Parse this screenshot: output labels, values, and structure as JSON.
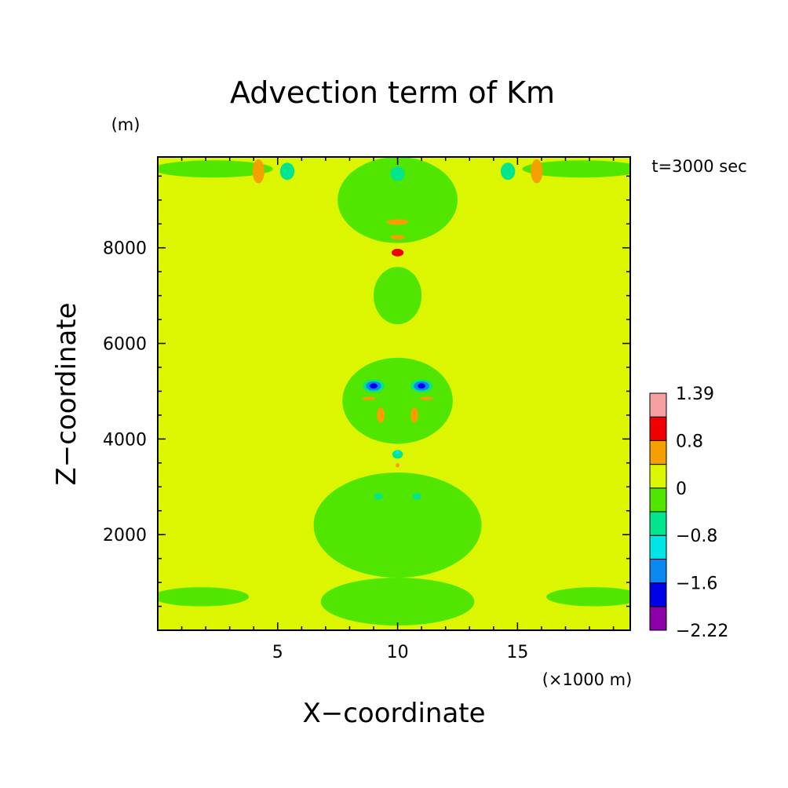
{
  "chart_data": {
    "type": "heatmap",
    "title": "Advection term of Km",
    "xlabel": "X−coordinate",
    "ylabel": "Z−coordinate",
    "x_unit": "(×1000 m)",
    "y_unit": "(m)",
    "time_label": "t=3000 sec",
    "xlim": [
      0,
      19.7
    ],
    "ylim": [
      0,
      9900
    ],
    "x_ticks": [
      5,
      10,
      15
    ],
    "x_tick_labels": [
      "5",
      "10",
      "15"
    ],
    "y_ticks": [
      2000,
      4000,
      6000,
      8000
    ],
    "y_tick_labels": [
      "2000",
      "4000",
      "6000",
      "8000"
    ],
    "colorbar": {
      "levels": [
        -2.22,
        -1.6,
        -0.8,
        0,
        0.8,
        1.39
      ],
      "level_labels": [
        "−2.22",
        "−1.6",
        "−0.8",
        "0",
        "0.8",
        "1.39"
      ],
      "colors": [
        "#8c00aa",
        "#0000e6",
        "#0a87f0",
        "#00e6e6",
        "#00e68c",
        "#50e600",
        "#dcf500",
        "#f5a000",
        "#f00000",
        "#f5a0a0"
      ]
    },
    "background_value": 0.2,
    "background_color": "#dcf500",
    "features": [
      {
        "x": 10.0,
        "z": 9000,
        "value": -0.3,
        "rx": 2.5,
        "rz": 900,
        "color": "#50e600"
      },
      {
        "x": 10.0,
        "z": 7000,
        "value": -0.3,
        "rx": 1.0,
        "rz": 600,
        "color": "#50e600"
      },
      {
        "x": 10.0,
        "z": 4800,
        "value": -0.3,
        "rx": 2.3,
        "rz": 900,
        "color": "#50e600"
      },
      {
        "x": 10.0,
        "z": 2200,
        "value": -0.3,
        "rx": 3.5,
        "rz": 1100,
        "color": "#50e600"
      },
      {
        "x": 10.0,
        "z": 600,
        "value": -0.3,
        "rx": 3.2,
        "rz": 500,
        "color": "#50e600"
      },
      {
        "x": 2.3,
        "z": 9650,
        "value": -0.3,
        "rx": 2.5,
        "rz": 180,
        "color": "#50e600"
      },
      {
        "x": 17.7,
        "z": 9650,
        "value": -0.3,
        "rx": 2.5,
        "rz": 180,
        "color": "#50e600"
      },
      {
        "x": 1.8,
        "z": 700,
        "value": -0.3,
        "rx": 2.0,
        "rz": 200,
        "color": "#50e600"
      },
      {
        "x": 18.2,
        "z": 700,
        "value": -0.3,
        "rx": 2.0,
        "rz": 200,
        "color": "#50e600"
      },
      {
        "x": 4.2,
        "z": 9600,
        "value": 0.9,
        "rx": 0.25,
        "rz": 250,
        "color": "#f5a000"
      },
      {
        "x": 15.8,
        "z": 9600,
        "value": 0.9,
        "rx": 0.25,
        "rz": 250,
        "color": "#f5a000"
      },
      {
        "x": 5.4,
        "z": 9600,
        "value": -0.6,
        "rx": 0.3,
        "rz": 180,
        "color": "#00e68c"
      },
      {
        "x": 14.6,
        "z": 9600,
        "value": -0.6,
        "rx": 0.3,
        "rz": 180,
        "color": "#00e68c"
      },
      {
        "x": 10.0,
        "z": 9550,
        "value": -0.6,
        "rx": 0.3,
        "rz": 150,
        "color": "#00e68c"
      },
      {
        "x": 10.0,
        "z": 8540,
        "value": 0.9,
        "rx": 0.45,
        "rz": 60,
        "color": "#f5a000"
      },
      {
        "x": 10.0,
        "z": 8220,
        "value": 0.9,
        "rx": 0.3,
        "rz": 50,
        "color": "#f5a000"
      },
      {
        "x": 10.0,
        "z": 7900,
        "value": 1.1,
        "rx": 0.25,
        "rz": 80,
        "color": "#f00000"
      },
      {
        "x": 9.0,
        "z": 5110,
        "value": -0.6,
        "rx": 0.45,
        "rz": 130,
        "color": "#00e68c"
      },
      {
        "x": 11.0,
        "z": 5110,
        "value": -0.6,
        "rx": 0.45,
        "rz": 130,
        "color": "#00e68c"
      },
      {
        "x": 9.0,
        "z": 5110,
        "value": -1.2,
        "rx": 0.32,
        "rz": 95,
        "color": "#0a87f0"
      },
      {
        "x": 11.0,
        "z": 5110,
        "value": -1.2,
        "rx": 0.32,
        "rz": 95,
        "color": "#0a87f0"
      },
      {
        "x": 9.0,
        "z": 5110,
        "value": -1.9,
        "rx": 0.16,
        "rz": 55,
        "color": "#0000e6"
      },
      {
        "x": 11.0,
        "z": 5110,
        "value": -1.9,
        "rx": 0.16,
        "rz": 55,
        "color": "#0000e6"
      },
      {
        "x": 8.8,
        "z": 4850,
        "value": 0.9,
        "rx": 0.28,
        "rz": 35,
        "color": "#f5a000"
      },
      {
        "x": 11.2,
        "z": 4850,
        "value": 0.9,
        "rx": 0.28,
        "rz": 35,
        "color": "#f5a000"
      },
      {
        "x": 9.3,
        "z": 4500,
        "value": 0.9,
        "rx": 0.16,
        "rz": 160,
        "color": "#f5a000"
      },
      {
        "x": 10.7,
        "z": 4500,
        "value": 0.9,
        "rx": 0.16,
        "rz": 160,
        "color": "#f5a000"
      },
      {
        "x": 10.0,
        "z": 3680,
        "value": -0.6,
        "rx": 0.22,
        "rz": 90,
        "color": "#00e68c"
      },
      {
        "x": 10.0,
        "z": 3720,
        "value": -1.0,
        "rx": 0.1,
        "rz": 40,
        "color": "#00e6e6"
      },
      {
        "x": 10.0,
        "z": 3450,
        "value": 0.9,
        "rx": 0.08,
        "rz": 45,
        "color": "#f5a000"
      },
      {
        "x": 9.2,
        "z": 2800,
        "value": -0.6,
        "rx": 0.18,
        "rz": 70,
        "color": "#00e68c"
      },
      {
        "x": 10.8,
        "z": 2800,
        "value": -0.6,
        "rx": 0.18,
        "rz": 70,
        "color": "#00e68c"
      }
    ]
  }
}
